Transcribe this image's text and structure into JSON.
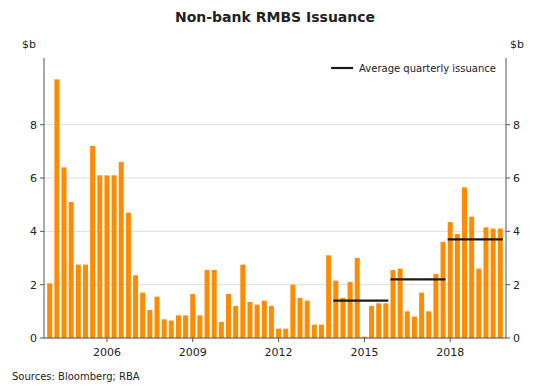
{
  "chart_data": {
    "type": "bar",
    "title": "Non-bank RMBS Issuance",
    "ylabel": "$b",
    "y2label": "$b",
    "source": "Sources:  Bloomberg; RBA",
    "categories": [
      null,
      null,
      null,
      null,
      null,
      null,
      null,
      null,
      "2006",
      null,
      null,
      null,
      null,
      null,
      null,
      null,
      null,
      null,
      null,
      null,
      "2009",
      null,
      null,
      null,
      null,
      null,
      null,
      null,
      null,
      null,
      null,
      null,
      "2012",
      null,
      null,
      null,
      null,
      null,
      null,
      null,
      null,
      null,
      null,
      null,
      "2015",
      null,
      null,
      null,
      null,
      null,
      null,
      null,
      null,
      null,
      null,
      null,
      "2018",
      null,
      null,
      null,
      null,
      null,
      null,
      null
    ],
    "series": [
      {
        "type": "bar",
        "color": "#FF8C00",
        "values": [
          2.05,
          9.7,
          6.4,
          5.1,
          2.75,
          2.75,
          7.2,
          6.1,
          6.1,
          6.1,
          6.6,
          4.7,
          2.35,
          1.7,
          1.05,
          1.55,
          0.7,
          0.65,
          0.85,
          0.85,
          1.65,
          0.85,
          2.55,
          2.55,
          0.6,
          1.65,
          1.2,
          2.75,
          1.35,
          1.25,
          1.4,
          1.2,
          0.35,
          0.35,
          2.0,
          1.5,
          1.4,
          0.5,
          0.5,
          3.1,
          2.15,
          1.5,
          2.1,
          3.0,
          0.05,
          1.2,
          1.3,
          1.3,
          2.55,
          2.6,
          1.0,
          0.8,
          1.7,
          1.0,
          2.4,
          3.6,
          4.35,
          3.9,
          5.65,
          4.55,
          2.6,
          4.15,
          4.1,
          4.1
        ]
      },
      {
        "name": "Average quarterly issuance",
        "type": "line",
        "color": "#1a1a1a",
        "values": [
          null,
          null,
          null,
          null,
          null,
          null,
          null,
          null,
          null,
          null,
          null,
          null,
          null,
          null,
          null,
          null,
          null,
          null,
          null,
          null,
          null,
          null,
          null,
          null,
          null,
          null,
          null,
          null,
          null,
          null,
          null,
          null,
          null,
          null,
          null,
          null,
          null,
          null,
          null,
          null,
          1.4,
          1.4,
          1.4,
          1.4,
          1.4,
          1.4,
          1.4,
          1.4,
          2.2,
          2.2,
          2.2,
          2.2,
          2.2,
          2.2,
          2.2,
          2.2,
          3.7,
          3.7,
          3.7,
          3.7,
          3.7,
          3.7,
          3.7,
          3.7
        ]
      }
    ],
    "ylim": [
      0,
      10.5
    ],
    "yticks": [
      0,
      2,
      4,
      6,
      8
    ],
    "y2lim": [
      0,
      10.5
    ],
    "y2ticks": [
      0,
      2,
      4,
      6,
      8
    ],
    "grid": true,
    "legend": "upper right"
  }
}
